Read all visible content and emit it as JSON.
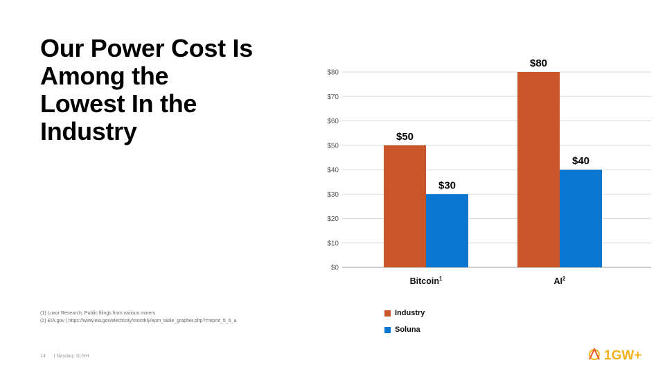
{
  "title_lines": [
    "Our Power Cost Is",
    "Among the",
    "Lowest In the",
    "Industry"
  ],
  "chart_data": {
    "type": "bar",
    "categories": [
      "Bitcoin",
      "AI"
    ],
    "category_superscripts": [
      "1",
      "2"
    ],
    "series": [
      {
        "name": "Industry",
        "values": [
          50,
          80
        ],
        "labels": [
          "$50",
          "$80"
        ]
      },
      {
        "name": "Soluna",
        "values": [
          30,
          40
        ],
        "labels": [
          "$30",
          "$40"
        ]
      }
    ],
    "yticks": [
      0,
      10,
      20,
      30,
      40,
      50,
      60,
      70,
      80
    ],
    "ytick_labels": [
      "$0",
      "$10",
      "$20",
      "$30",
      "$40",
      "$50",
      "$60",
      "$70",
      "$80"
    ],
    "ylim": [
      0,
      80
    ],
    "grid": true,
    "legend_position": "bottom-left",
    "colors": [
      "#c8562a",
      "#0a76d0"
    ]
  },
  "legend": {
    "items": [
      {
        "label": "Industry",
        "color": "#c8562a"
      },
      {
        "label": "Soluna",
        "color": "#0a76d0"
      }
    ]
  },
  "footnotes": [
    "(1) Luxor Research; Public filings from various miners",
    "(2) EIA.gov | https://www.eia.gov/electricity/monthly/epm_table_grapher.php?t=epmt_5_6_a"
  ],
  "footer": {
    "page_number": "14",
    "ticker": "| Nasdaq: SLNH"
  },
  "logo": {
    "text": "1GW+",
    "colors": [
      "#f2b21b",
      "#e8562a"
    ]
  }
}
